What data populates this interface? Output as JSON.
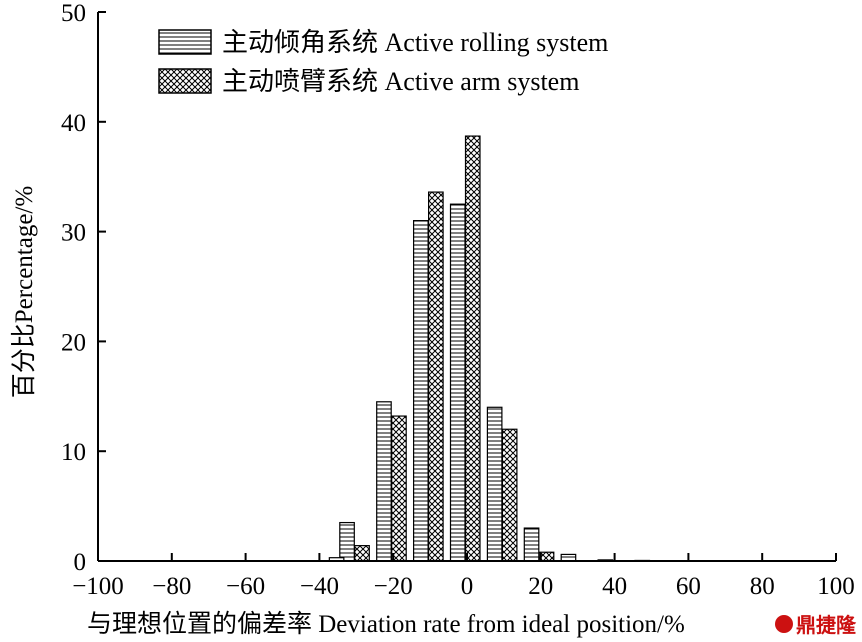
{
  "chart_data": {
    "type": "bar",
    "title": "",
    "xlabel": "与理想位置的偏差率 Deviation rate from ideal position/%",
    "ylabel": "百分比Percentage/%",
    "xlim": [
      -100,
      100
    ],
    "ylim": [
      0,
      50
    ],
    "xticks": [
      "−100",
      "−80",
      "−60",
      "−40",
      "−20",
      "0",
      "20",
      "40",
      "60",
      "80",
      "100"
    ],
    "yticks": [
      "0",
      "10",
      "20",
      "30",
      "40",
      "50"
    ],
    "bin_centers": [
      -30,
      -20,
      -10,
      0,
      10,
      20,
      30,
      40,
      50
    ],
    "series": [
      {
        "name": "主动倾角系统 Active rolling system",
        "pattern": "horizontal-lines",
        "values": [
          3.5,
          14.5,
          31.0,
          32.5,
          14.0,
          3.0,
          0.6,
          0.1,
          0.05
        ]
      },
      {
        "name": "主动喷臂系统 Active arm system",
        "pattern": "crosshatch",
        "values": [
          1.4,
          13.2,
          33.6,
          38.7,
          12.0,
          0.8,
          0,
          0,
          0
        ]
      }
    ],
    "extra_bars": [
      {
        "x": -35,
        "value": 0.3,
        "series": 0
      }
    ],
    "legend_position": "top-left"
  },
  "watermark": {
    "text": "鼎捷隆"
  }
}
